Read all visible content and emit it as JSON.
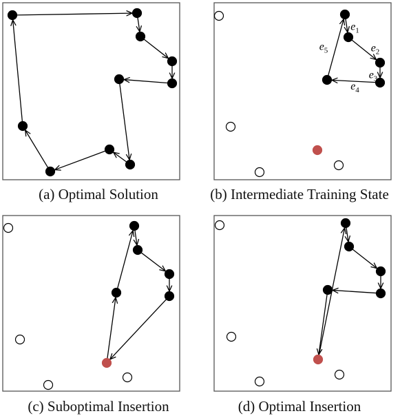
{
  "colors": {
    "frame": "#555555",
    "node_visited": "#000000",
    "node_unvisited_fill": "#ffffff",
    "node_highlight": "#c0504d",
    "edge": "#000000"
  },
  "panels": [
    {
      "caption": "(a) Optimal Solution",
      "nodes": [
        {
          "id": 1,
          "state": "visited"
        },
        {
          "id": 2,
          "state": "visited"
        },
        {
          "id": 3,
          "state": "visited"
        },
        {
          "id": 4,
          "state": "visited"
        },
        {
          "id": 5,
          "state": "visited"
        },
        {
          "id": 6,
          "state": "visited"
        },
        {
          "id": 7,
          "state": "visited"
        },
        {
          "id": 8,
          "state": "visited"
        },
        {
          "id": 9,
          "state": "visited"
        },
        {
          "id": 10,
          "state": "visited"
        },
        {
          "id": 11,
          "state": "visited"
        },
        {
          "id": 12,
          "state": "visited"
        }
      ],
      "edges": [
        {
          "from": 1,
          "to": 2,
          "label": ""
        },
        {
          "from": 2,
          "to": 3,
          "label": ""
        },
        {
          "from": 3,
          "to": 4,
          "label": ""
        },
        {
          "from": 4,
          "to": 5,
          "label": ""
        },
        {
          "from": 5,
          "to": 6,
          "label": ""
        },
        {
          "from": 6,
          "to": 7,
          "label": ""
        },
        {
          "from": 7,
          "to": 8,
          "label": ""
        },
        {
          "from": 8,
          "to": 9,
          "label": ""
        },
        {
          "from": 9,
          "to": 10,
          "label": ""
        },
        {
          "from": 10,
          "to": 11,
          "label": ""
        },
        {
          "from": 11,
          "to": 12,
          "label": ""
        },
        {
          "from": 12,
          "to": 1,
          "label": ""
        }
      ]
    },
    {
      "caption": "(b) Intermediate Training State",
      "nodes": [
        {
          "id": 1,
          "state": "unvisited"
        },
        {
          "id": 2,
          "state": "visited"
        },
        {
          "id": 3,
          "state": "visited"
        },
        {
          "id": 4,
          "state": "visited"
        },
        {
          "id": 5,
          "state": "visited"
        },
        {
          "id": 6,
          "state": "visited"
        },
        {
          "id": 7,
          "state": "unvisited"
        },
        {
          "id": 8,
          "state": "highlight"
        },
        {
          "id": 9,
          "state": "unvisited"
        },
        {
          "id": 10,
          "state": "unvisited"
        }
      ],
      "edges": [
        {
          "from": 2,
          "to": 3,
          "label": "e1"
        },
        {
          "from": 3,
          "to": 4,
          "label": "e2"
        },
        {
          "from": 4,
          "to": 5,
          "label": "e3"
        },
        {
          "from": 5,
          "to": 6,
          "label": "e4"
        },
        {
          "from": 6,
          "to": 2,
          "label": "e5"
        }
      ]
    },
    {
      "caption": "(c) Suboptimal Insertion",
      "nodes": [
        {
          "id": 1,
          "state": "unvisited"
        },
        {
          "id": 2,
          "state": "visited"
        },
        {
          "id": 3,
          "state": "visited"
        },
        {
          "id": 4,
          "state": "visited"
        },
        {
          "id": 5,
          "state": "visited"
        },
        {
          "id": 6,
          "state": "visited"
        },
        {
          "id": 7,
          "state": "unvisited"
        },
        {
          "id": 8,
          "state": "highlight"
        },
        {
          "id": 9,
          "state": "unvisited"
        },
        {
          "id": 10,
          "state": "unvisited"
        }
      ],
      "edges": [
        {
          "from": 2,
          "to": 3,
          "label": ""
        },
        {
          "from": 3,
          "to": 4,
          "label": ""
        },
        {
          "from": 4,
          "to": 5,
          "label": ""
        },
        {
          "from": 5,
          "to": 8,
          "label": ""
        },
        {
          "from": 8,
          "to": 6,
          "label": ""
        },
        {
          "from": 6,
          "to": 2,
          "label": ""
        }
      ]
    },
    {
      "caption": "(d) Optimal Insertion",
      "nodes": [
        {
          "id": 1,
          "state": "unvisited"
        },
        {
          "id": 2,
          "state": "visited"
        },
        {
          "id": 3,
          "state": "visited"
        },
        {
          "id": 4,
          "state": "visited"
        },
        {
          "id": 5,
          "state": "visited"
        },
        {
          "id": 6,
          "state": "visited"
        },
        {
          "id": 7,
          "state": "unvisited"
        },
        {
          "id": 8,
          "state": "highlight"
        },
        {
          "id": 9,
          "state": "unvisited"
        },
        {
          "id": 10,
          "state": "unvisited"
        }
      ],
      "edges": [
        {
          "from": 2,
          "to": 3,
          "label": ""
        },
        {
          "from": 3,
          "to": 4,
          "label": ""
        },
        {
          "from": 4,
          "to": 5,
          "label": ""
        },
        {
          "from": 5,
          "to": 6,
          "label": ""
        },
        {
          "from": 6,
          "to": 8,
          "label": ""
        },
        {
          "from": 8,
          "to": 2,
          "label": ""
        }
      ]
    }
  ]
}
